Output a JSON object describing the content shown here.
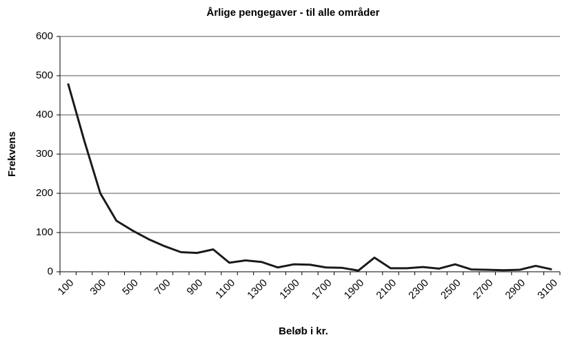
{
  "chart_data": {
    "type": "line",
    "title": "Årlige pengegaver - til alle områder",
    "x_label": "Beløb i kr.",
    "y_label": "Frekvens",
    "categories": [
      "100",
      null,
      "300",
      null,
      "500",
      null,
      "700",
      null,
      "900",
      null,
      "1100",
      null,
      "1300",
      null,
      "1500",
      null,
      "1700",
      null,
      "1900",
      null,
      "2100",
      null,
      "2300",
      null,
      "2500",
      null,
      "2700",
      null,
      "2900",
      null,
      "3100"
    ],
    "series": [
      {
        "name": "Frekvens",
        "color": "#1a1a1a",
        "values": [
          480,
          335,
          200,
          130,
          105,
          83,
          65,
          50,
          48,
          57,
          23,
          29,
          25,
          11,
          19,
          18,
          11,
          10,
          3,
          36,
          9,
          9,
          12,
          8,
          19,
          6,
          5,
          4,
          5,
          15,
          6
        ]
      }
    ],
    "ylim": [
      0,
      600
    ],
    "yticks": [
      0,
      100,
      200,
      300,
      400,
      500,
      600
    ],
    "grid": true
  }
}
